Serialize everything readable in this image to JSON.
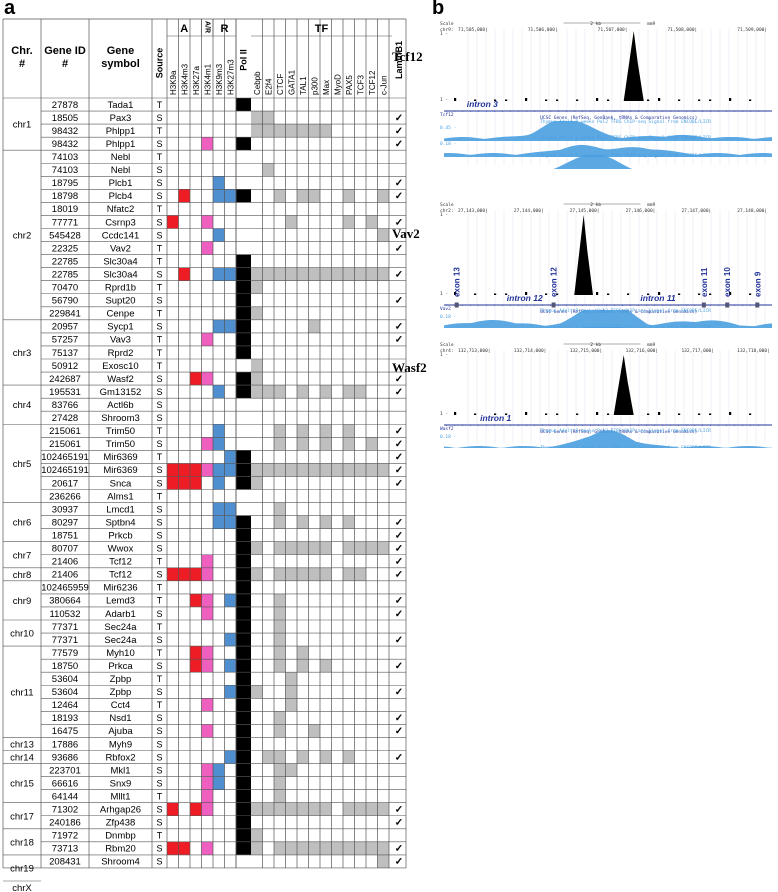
{
  "panels": {
    "a": "a",
    "b": "b"
  },
  "table": {
    "headers": {
      "chr": "Chr. #",
      "gene_id": "Gene ID #",
      "gene_symbol": "Gene symbol",
      "source": "Source",
      "group_a": "A",
      "group_ar": "A/R",
      "group_r": "R",
      "pol2": "Pol II",
      "group_tf": "TF",
      "laminb1": "LaminB1"
    },
    "marks": [
      "H3K9a",
      "H3K4m3",
      "H3K27a",
      "H3K4m1",
      "H3K9m3",
      "H3K27m3"
    ],
    "tfs": [
      "Cebpb",
      "E2f4",
      "CTCF",
      "GATA1",
      "TAL1",
      "p300",
      "Max",
      "MyoD",
      "PAX5",
      "TCF3",
      "TCF12",
      "c-Jun"
    ],
    "chr_groups": [
      {
        "label": "chr1",
        "start": 0,
        "count": 4
      },
      {
        "label": "chr2",
        "start": 4,
        "count": 13
      },
      {
        "label": "chr3",
        "start": 17,
        "count": 5
      },
      {
        "label": "chr4",
        "start": 22,
        "count": 3
      },
      {
        "label": "chr5",
        "start": 25,
        "count": 6
      },
      {
        "label": "chr6",
        "start": 31,
        "count": 3
      },
      {
        "label": "chr7",
        "start": 34,
        "count": 2
      },
      {
        "label": "chr8",
        "start": 36,
        "count": 1
      },
      {
        "label": "chr9",
        "start": 37,
        "count": 3
      },
      {
        "label": "chr10",
        "start": 40,
        "count": 2
      },
      {
        "label": "chr11",
        "start": 42,
        "count": 7
      },
      {
        "label": "chr13",
        "start": 49,
        "count": 1
      },
      {
        "label": "chr14",
        "start": 50,
        "count": 1
      },
      {
        "label": "chr15",
        "start": 51,
        "count": 3
      },
      {
        "label": "chr17",
        "start": 54,
        "count": 2
      },
      {
        "label": "chr18",
        "start": 56,
        "count": 2
      },
      {
        "label": "chr19",
        "start": 58,
        "count": 2
      },
      {
        "label": "chrX",
        "start": 60,
        "count": 1
      }
    ],
    "colors": {
      "active": "#ee1c24",
      "poised": "#ee5fbf",
      "repressive": "#4f8fd0",
      "pol2": "#000000",
      "tf": "#bfbfbf",
      "grid": "#555555"
    },
    "rows": [
      {
        "id": "27878",
        "sym": "Tada1",
        "src": "T",
        "m": "......",
        "p": 1,
        "tf": "............",
        "l": ""
      },
      {
        "id": "18505",
        "sym": "Pax3",
        "src": "S",
        "m": "......",
        "p": 0,
        "tf": "11..........",
        "l": "✓"
      },
      {
        "id": "98432",
        "sym": "Phlpp1",
        "src": "T",
        "m": "......",
        "p": 0,
        "tf": "1111111.....",
        "l": "✓"
      },
      {
        "id": "98432",
        "sym": "Phlpp1",
        "src": "S",
        "m": "...P..",
        "p": 1,
        "tf": "............",
        "l": "✓"
      },
      {
        "id": "74103",
        "sym": "Nebl",
        "src": "T",
        "m": "......",
        "p": 0,
        "tf": "............",
        "l": ""
      },
      {
        "id": "74103",
        "sym": "Nebl",
        "src": "S",
        "m": "......",
        "p": 0,
        "tf": ".1..........",
        "l": ""
      },
      {
        "id": "18795",
        "sym": "Plcb1",
        "src": "S",
        "m": "....B.",
        "p": 0,
        "tf": "............",
        "l": "✓"
      },
      {
        "id": "18798",
        "sym": "Plcb4",
        "src": "S",
        "m": ".R..BB",
        "p": 1,
        "tf": "..1.11..1..1",
        "l": "✓"
      },
      {
        "id": "18019",
        "sym": "Nfatc2",
        "src": "T",
        "m": "......",
        "p": 0,
        "tf": "............",
        "l": ""
      },
      {
        "id": "77771",
        "sym": "Csrnp3",
        "src": "S",
        "m": "R..P..",
        "p": 0,
        "tf": "...1....1.1.",
        "l": "✓"
      },
      {
        "id": "545428",
        "sym": "Ccdc141",
        "src": "S",
        "m": "....B.",
        "p": 0,
        "tf": "...........1",
        "l": ""
      },
      {
        "id": "22325",
        "sym": "Vav2",
        "src": "T",
        "m": "...P..",
        "p": 0,
        "tf": "............",
        "l": "✓"
      },
      {
        "id": "22785",
        "sym": "Slc30a4",
        "src": "T",
        "m": "......",
        "p": 1,
        "tf": "............",
        "l": ""
      },
      {
        "id": "22785",
        "sym": "Slc30a4",
        "src": "S",
        "m": ".R..BB",
        "p": 1,
        "tf": "111111111111",
        "l": "✓"
      },
      {
        "id": "70470",
        "sym": "Rprd1b",
        "src": "T",
        "m": "......",
        "p": 1,
        "tf": "1...........",
        "l": ""
      },
      {
        "id": "56790",
        "sym": "Supt20",
        "src": "S",
        "m": "......",
        "p": 1,
        "tf": "............",
        "l": "✓"
      },
      {
        "id": "229841",
        "sym": "Cenpe",
        "src": "T",
        "m": "......",
        "p": 1,
        "tf": "1...........",
        "l": ""
      },
      {
        "id": "20957",
        "sym": "Sycp1",
        "src": "S",
        "m": "....BB",
        "p": 1,
        "tf": ".....1......",
        "l": "✓"
      },
      {
        "id": "57257",
        "sym": "Vav3",
        "src": "T",
        "m": "...P..",
        "p": 1,
        "tf": "............",
        "l": "✓"
      },
      {
        "id": "75137",
        "sym": "Rprd2",
        "src": "T",
        "m": "......",
        "p": 1,
        "tf": "............",
        "l": ""
      },
      {
        "id": "50912",
        "sym": "Exosc10",
        "src": "T",
        "m": "......",
        "p": 0,
        "tf": "1...........",
        "l": ""
      },
      {
        "id": "242687",
        "sym": "Wasf2",
        "src": "S",
        "m": "..RP..",
        "p": 1,
        "tf": "1...........",
        "l": "✓"
      },
      {
        "id": "195531",
        "sym": "Gm13152",
        "src": "S",
        "m": "....B.",
        "p": 1,
        "tf": "111.1.1.11..",
        "l": "✓"
      },
      {
        "id": "83766",
        "sym": "Actl6b",
        "src": "S",
        "m": "......",
        "p": 0,
        "tf": "............",
        "l": ""
      },
      {
        "id": "27428",
        "sym": "Shroom3",
        "src": "S",
        "m": "......",
        "p": 0,
        "tf": "............",
        "l": ""
      },
      {
        "id": "215061",
        "sym": "Trim50",
        "src": "T",
        "m": "....B.",
        "p": 0,
        "tf": "..1.1.1.1...",
        "l": "✓"
      },
      {
        "id": "215061",
        "sym": "Trim50",
        "src": "S",
        "m": "...PB.",
        "p": 0,
        "tf": "..1.1.1.1.1.",
        "l": "✓"
      },
      {
        "id": "102465191",
        "sym": "Mir6369",
        "src": "T",
        "m": ".....B",
        "p": 1,
        "tf": "............",
        "l": "✓"
      },
      {
        "id": "102465191",
        "sym": "Mir6369",
        "src": "S",
        "m": "RRRPBB",
        "p": 1,
        "tf": "111111111111",
        "l": "✓"
      },
      {
        "id": "20617",
        "sym": "Snca",
        "src": "S",
        "m": "RRR.B.",
        "p": 1,
        "tf": "1...........",
        "l": "✓"
      },
      {
        "id": "236266",
        "sym": "Alms1",
        "src": "T",
        "m": "......",
        "p": 0,
        "tf": "............",
        "l": ""
      },
      {
        "id": "30937",
        "sym": "Lmcd1",
        "src": "S",
        "m": "....BB",
        "p": 0,
        "tf": "..1.........",
        "l": ""
      },
      {
        "id": "80297",
        "sym": "Sptbn4",
        "src": "S",
        "m": "....BB",
        "p": 1,
        "tf": "..1.1.1.1...",
        "l": "✓"
      },
      {
        "id": "18751",
        "sym": "Prkcb",
        "src": "S",
        "m": "......",
        "p": 1,
        "tf": "............",
        "l": "✓"
      },
      {
        "id": "80707",
        "sym": "Wwox",
        "src": "S",
        "m": "......",
        "p": 1,
        "tf": "1.11111.1111",
        "l": "✓"
      },
      {
        "id": "21406",
        "sym": "Tcf12",
        "src": "T",
        "m": "...P..",
        "p": 1,
        "tf": "............",
        "l": "✓"
      },
      {
        "id": "21406",
        "sym": "Tcf12",
        "src": "S",
        "m": "RRRP..",
        "p": 1,
        "tf": "1.11111.11..",
        "l": "✓"
      },
      {
        "id": "102465959",
        "sym": "Mir6236",
        "src": "T",
        "m": "......",
        "p": 1,
        "tf": "............",
        "l": ""
      },
      {
        "id": "380664",
        "sym": "Lemd3",
        "src": "T",
        "m": "..RP.B",
        "p": 1,
        "tf": "..1.........",
        "l": "✓"
      },
      {
        "id": "110532",
        "sym": "Adarb1",
        "src": "S",
        "m": "...P..",
        "p": 1,
        "tf": "..1.........",
        "l": "✓"
      },
      {
        "id": "77371",
        "sym": "Sec24a",
        "src": "T",
        "m": "......",
        "p": 1,
        "tf": "..1.........",
        "l": ""
      },
      {
        "id": "77371",
        "sym": "Sec24a",
        "src": "S",
        "m": ".....B",
        "p": 1,
        "tf": "..1.........",
        "l": "✓"
      },
      {
        "id": "77579",
        "sym": "Myh10",
        "src": "T",
        "m": "..RP..",
        "p": 1,
        "tf": "..1.1.......",
        "l": ""
      },
      {
        "id": "18750",
        "sym": "Prkca",
        "src": "S",
        "m": "..RP.B",
        "p": 1,
        "tf": "..1.1.1.....",
        "l": "✓"
      },
      {
        "id": "53604",
        "sym": "Zpbp",
        "src": "T",
        "m": "......",
        "p": 1,
        "tf": "...1........",
        "l": ""
      },
      {
        "id": "53604",
        "sym": "Zpbp",
        "src": "S",
        "m": ".....B",
        "p": 1,
        "tf": "1..1........",
        "l": "✓"
      },
      {
        "id": "12464",
        "sym": "Cct4",
        "src": "T",
        "m": "...P..",
        "p": 1,
        "tf": "...1........",
        "l": ""
      },
      {
        "id": "18193",
        "sym": "Nsd1",
        "src": "S",
        "m": "......",
        "p": 1,
        "tf": "..1.........",
        "l": "✓"
      },
      {
        "id": "16475",
        "sym": "Ajuba",
        "src": "S",
        "m": "...P..",
        "p": 1,
        "tf": "..1..1......",
        "l": "✓"
      },
      {
        "id": "17886",
        "sym": "Myh9",
        "src": "S",
        "m": "......",
        "p": 1,
        "tf": "............",
        "l": ""
      },
      {
        "id": "93686",
        "sym": "Rbfox2",
        "src": "S",
        "m": ".....B",
        "p": 1,
        "tf": ".11.1.1.1...",
        "l": "✓"
      },
      {
        "id": "223701",
        "sym": "Mkl1",
        "src": "S",
        "m": "...PB.",
        "p": 1,
        "tf": "..11........",
        "l": ""
      },
      {
        "id": "66616",
        "sym": "Snx9",
        "src": "S",
        "m": "...PB.",
        "p": 1,
        "tf": "..1.........",
        "l": ""
      },
      {
        "id": "64144",
        "sym": "Mllt1",
        "src": "T",
        "m": "...P..",
        "p": 1,
        "tf": "..1.........",
        "l": ""
      },
      {
        "id": "71302",
        "sym": "Arhgap26",
        "src": "S",
        "m": "R.RP..",
        "p": 1,
        "tf": "1111111.1111",
        "l": "✓"
      },
      {
        "id": "240186",
        "sym": "Zfp438",
        "src": "S",
        "m": "......",
        "p": 1,
        "tf": "............",
        "l": "✓"
      },
      {
        "id": "71972",
        "sym": "Dnmbp",
        "src": "T",
        "m": "......",
        "p": 1,
        "tf": "1...........",
        "l": ""
      },
      {
        "id": "73713",
        "sym": "Rbm20",
        "src": "S",
        "m": "RR.P..",
        "p": 1,
        "tf": "1.1111111111",
        "l": "✓"
      },
      {
        "id": "208431",
        "sym": "Shroom4",
        "src": "S",
        "m": "......",
        "p": 0,
        "tf": "...........1",
        "l": "✓"
      }
    ]
  },
  "tracks": [
    {
      "gene": "Tcf12",
      "scale_label": "Scale",
      "chr_label": "chr9:",
      "scale_text": "2 kb",
      "assembly": "mm9",
      "positions": [
        "71,505,000|",
        "71,506,000|",
        "71,507,000|",
        "71,508,000|",
        "71,509,000|"
      ],
      "introns": [
        "intron 3"
      ],
      "exons": [],
      "genes_track_label": "UCSC Genes (RefSeq, GenBank, tRNAs & Comparative Genomics)",
      "gene_name_small": "Tcf12",
      "signal_label": "Thymus Adult 8 weeks Pol2 TFBS ChIP-seq Signal from ENCODE/LICR",
      "y_top": "1 -",
      "y_bot": "1 -",
      "scales": [
        "0.45 -",
        "0.18 -"
      ]
    },
    {
      "gene": "Vav2",
      "scale_label": "Scale",
      "chr_label": "chr2:",
      "scale_text": "2 kb",
      "assembly": "mm9",
      "positions": [
        "27,143,000|",
        "27,144,000|",
        "27,145,000|",
        "27,146,000|",
        "27,147,000|",
        "27,148,000|"
      ],
      "introns": [
        "intron 12",
        "intron 11"
      ],
      "exons": [
        "exon 13",
        "exon 12",
        "exon 11",
        "exon 10",
        "exon 9"
      ],
      "genes_track_label": "UCSC Genes (RefSeq, GenBank, tRNAs & Comparative Genomics)",
      "gene_name_small": "Vav2",
      "signal_label": "Thymus Adult 8 weeks Pol2 TFBS ChIP-seq Signal from ENCODE/LICR",
      "y_top": "1 -",
      "y_bot": "1 -",
      "scales": [
        "0.18 -",
        "0.75 -",
        "0.18 -"
      ]
    },
    {
      "gene": "Wasf2",
      "scale_label": "Scale",
      "chr_label": "chr4:",
      "scale_text": "2 kb",
      "assembly": "mm9",
      "positions": [
        "132,713,000|",
        "132,714,000|",
        "132,715,000|",
        "132,716,000|",
        "132,717,000|",
        "132,718,000|"
      ],
      "introns": [
        "intron 1"
      ],
      "exons": [],
      "genes_track_label": "UCSC Genes (RefSeq, GenBank, tRNAs & Comparative Genomics)",
      "gene_name_small": "Wasf2",
      "signal_label": "Thymus Adult 8 weeks Pol2 TFBS ChIP-seq Signal from ENCODE/LICR",
      "y_top": "1 -",
      "y_bot": "1 -",
      "scales": [
        "0.18 -",
        "0.75 -",
        "0.18 -"
      ]
    }
  ]
}
